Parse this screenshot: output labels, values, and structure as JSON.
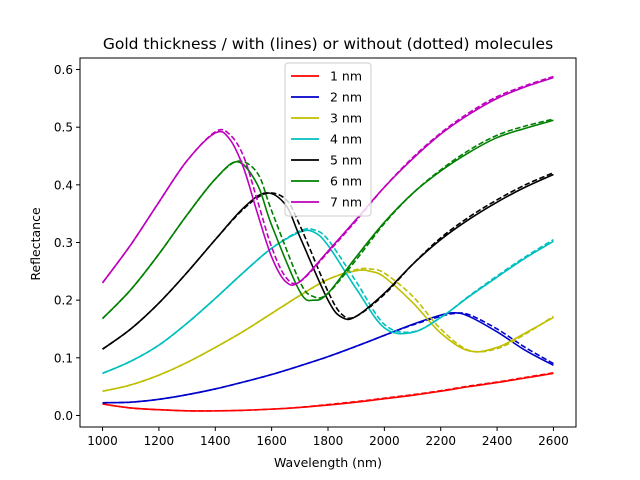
{
  "chart_data": {
    "type": "line",
    "title": "Gold thickness / with (lines) or without (dotted) molecules",
    "xlabel": "Wavelength (nm)",
    "ylabel": "Reflectance",
    "xlim": [
      920,
      2680
    ],
    "ylim": [
      -0.02,
      0.62
    ],
    "xticks": [
      1000,
      1200,
      1400,
      1600,
      1800,
      2000,
      2200,
      2400,
      2600
    ],
    "yticks": [
      0.0,
      0.1,
      0.2,
      0.3,
      0.4,
      0.5,
      0.6
    ],
    "grid": false,
    "legend_position": "top-center",
    "series": [
      {
        "name": "1 nm",
        "color": "#ff0000",
        "solid": [
          [
            1000,
            0.02
          ],
          [
            1100,
            0.013
          ],
          [
            1200,
            0.01
          ],
          [
            1300,
            0.008
          ],
          [
            1400,
            0.008
          ],
          [
            1500,
            0.009
          ],
          [
            1600,
            0.011
          ],
          [
            1700,
            0.014
          ],
          [
            1800,
            0.018
          ],
          [
            1900,
            0.023
          ],
          [
            2000,
            0.029
          ],
          [
            2100,
            0.035
          ],
          [
            2200,
            0.042
          ],
          [
            2300,
            0.05
          ],
          [
            2400,
            0.057
          ],
          [
            2500,
            0.065
          ],
          [
            2600,
            0.073
          ]
        ],
        "dotted": [
          [
            1000,
            0.02
          ],
          [
            1100,
            0.013
          ],
          [
            1200,
            0.01
          ],
          [
            1300,
            0.008
          ],
          [
            1400,
            0.008
          ],
          [
            1500,
            0.009
          ],
          [
            1600,
            0.011
          ],
          [
            1700,
            0.014
          ],
          [
            1800,
            0.019
          ],
          [
            1900,
            0.024
          ],
          [
            2000,
            0.03
          ],
          [
            2100,
            0.036
          ],
          [
            2200,
            0.043
          ],
          [
            2300,
            0.051
          ],
          [
            2400,
            0.058
          ],
          [
            2500,
            0.066
          ],
          [
            2600,
            0.074
          ]
        ]
      },
      {
        "name": "2 nm",
        "color": "#0000cc",
        "solid": [
          [
            1000,
            0.022
          ],
          [
            1100,
            0.023
          ],
          [
            1200,
            0.028
          ],
          [
            1300,
            0.036
          ],
          [
            1400,
            0.046
          ],
          [
            1500,
            0.058
          ],
          [
            1600,
            0.071
          ],
          [
            1700,
            0.086
          ],
          [
            1800,
            0.102
          ],
          [
            1900,
            0.12
          ],
          [
            2000,
            0.139
          ],
          [
            2100,
            0.158
          ],
          [
            2200,
            0.174
          ],
          [
            2250,
            0.178
          ],
          [
            2300,
            0.172
          ],
          [
            2400,
            0.145
          ],
          [
            2500,
            0.113
          ],
          [
            2600,
            0.087
          ]
        ],
        "dotted": [
          [
            1000,
            0.022
          ],
          [
            1100,
            0.023
          ],
          [
            1200,
            0.028
          ],
          [
            1300,
            0.036
          ],
          [
            1400,
            0.046
          ],
          [
            1500,
            0.058
          ],
          [
            1600,
            0.071
          ],
          [
            1700,
            0.086
          ],
          [
            1800,
            0.102
          ],
          [
            1900,
            0.12
          ],
          [
            2000,
            0.139
          ],
          [
            2100,
            0.157
          ],
          [
            2200,
            0.172
          ],
          [
            2250,
            0.177
          ],
          [
            2300,
            0.175
          ],
          [
            2400,
            0.15
          ],
          [
            2500,
            0.118
          ],
          [
            2600,
            0.09
          ]
        ]
      },
      {
        "name": "3 nm",
        "color": "#bfbf00",
        "solid": [
          [
            1000,
            0.042
          ],
          [
            1100,
            0.053
          ],
          [
            1200,
            0.07
          ],
          [
            1300,
            0.092
          ],
          [
            1400,
            0.118
          ],
          [
            1500,
            0.146
          ],
          [
            1600,
            0.177
          ],
          [
            1700,
            0.208
          ],
          [
            1800,
            0.236
          ],
          [
            1900,
            0.251
          ],
          [
            1950,
            0.25
          ],
          [
            2000,
            0.24
          ],
          [
            2100,
            0.196
          ],
          [
            2200,
            0.143
          ],
          [
            2300,
            0.112
          ],
          [
            2400,
            0.118
          ],
          [
            2500,
            0.143
          ],
          [
            2600,
            0.17
          ]
        ],
        "dotted": [
          [
            1000,
            0.042
          ],
          [
            1100,
            0.053
          ],
          [
            1200,
            0.07
          ],
          [
            1300,
            0.092
          ],
          [
            1400,
            0.118
          ],
          [
            1500,
            0.146
          ],
          [
            1600,
            0.177
          ],
          [
            1700,
            0.208
          ],
          [
            1800,
            0.236
          ],
          [
            1900,
            0.253
          ],
          [
            1950,
            0.254
          ],
          [
            2000,
            0.247
          ],
          [
            2100,
            0.207
          ],
          [
            2200,
            0.15
          ],
          [
            2300,
            0.113
          ],
          [
            2400,
            0.116
          ],
          [
            2500,
            0.141
          ],
          [
            2600,
            0.172
          ]
        ]
      },
      {
        "name": "4 nm",
        "color": "#00bfbf",
        "solid": [
          [
            1000,
            0.073
          ],
          [
            1100,
            0.094
          ],
          [
            1200,
            0.122
          ],
          [
            1300,
            0.16
          ],
          [
            1400,
            0.203
          ],
          [
            1500,
            0.248
          ],
          [
            1600,
            0.29
          ],
          [
            1700,
            0.318
          ],
          [
            1750,
            0.318
          ],
          [
            1800,
            0.295
          ],
          [
            1900,
            0.22
          ],
          [
            2000,
            0.152
          ],
          [
            2100,
            0.144
          ],
          [
            2200,
            0.17
          ],
          [
            2300,
            0.206
          ],
          [
            2400,
            0.24
          ],
          [
            2500,
            0.273
          ],
          [
            2600,
            0.302
          ]
        ],
        "dotted": [
          [
            1000,
            0.073
          ],
          [
            1100,
            0.094
          ],
          [
            1200,
            0.122
          ],
          [
            1300,
            0.16
          ],
          [
            1400,
            0.203
          ],
          [
            1500,
            0.248
          ],
          [
            1600,
            0.29
          ],
          [
            1700,
            0.32
          ],
          [
            1750,
            0.322
          ],
          [
            1800,
            0.305
          ],
          [
            1900,
            0.232
          ],
          [
            2000,
            0.158
          ],
          [
            2100,
            0.145
          ],
          [
            2200,
            0.17
          ],
          [
            2300,
            0.207
          ],
          [
            2400,
            0.242
          ],
          [
            2500,
            0.275
          ],
          [
            2600,
            0.305
          ]
        ]
      },
      {
        "name": "5 nm",
        "color": "#000000",
        "solid": [
          [
            1000,
            0.115
          ],
          [
            1100,
            0.15
          ],
          [
            1200,
            0.195
          ],
          [
            1300,
            0.248
          ],
          [
            1400,
            0.305
          ],
          [
            1500,
            0.36
          ],
          [
            1580,
            0.386
          ],
          [
            1650,
            0.365
          ],
          [
            1700,
            0.31
          ],
          [
            1800,
            0.2
          ],
          [
            1850,
            0.17
          ],
          [
            1900,
            0.172
          ],
          [
            2000,
            0.212
          ],
          [
            2100,
            0.262
          ],
          [
            2200,
            0.305
          ],
          [
            2300,
            0.34
          ],
          [
            2400,
            0.37
          ],
          [
            2500,
            0.396
          ],
          [
            2600,
            0.418
          ]
        ],
        "dotted": [
          [
            1000,
            0.115
          ],
          [
            1100,
            0.15
          ],
          [
            1200,
            0.195
          ],
          [
            1300,
            0.248
          ],
          [
            1400,
            0.305
          ],
          [
            1500,
            0.358
          ],
          [
            1580,
            0.385
          ],
          [
            1650,
            0.375
          ],
          [
            1700,
            0.33
          ],
          [
            1800,
            0.215
          ],
          [
            1850,
            0.175
          ],
          [
            1900,
            0.172
          ],
          [
            2000,
            0.21
          ],
          [
            2100,
            0.262
          ],
          [
            2200,
            0.308
          ],
          [
            2300,
            0.344
          ],
          [
            2400,
            0.374
          ],
          [
            2500,
            0.4
          ],
          [
            2600,
            0.421
          ]
        ]
      },
      {
        "name": "6 nm",
        "color": "#008000",
        "solid": [
          [
            1000,
            0.168
          ],
          [
            1100,
            0.218
          ],
          [
            1200,
            0.28
          ],
          [
            1300,
            0.348
          ],
          [
            1400,
            0.41
          ],
          [
            1480,
            0.44
          ],
          [
            1550,
            0.4
          ],
          [
            1600,
            0.33
          ],
          [
            1700,
            0.215
          ],
          [
            1750,
            0.2
          ],
          [
            1800,
            0.212
          ],
          [
            1900,
            0.275
          ],
          [
            2000,
            0.335
          ],
          [
            2100,
            0.385
          ],
          [
            2200,
            0.424
          ],
          [
            2300,
            0.456
          ],
          [
            2400,
            0.482
          ],
          [
            2500,
            0.498
          ],
          [
            2600,
            0.512
          ]
        ],
        "dotted": [
          [
            1000,
            0.168
          ],
          [
            1100,
            0.218
          ],
          [
            1200,
            0.28
          ],
          [
            1300,
            0.348
          ],
          [
            1400,
            0.41
          ],
          [
            1480,
            0.441
          ],
          [
            1550,
            0.42
          ],
          [
            1600,
            0.355
          ],
          [
            1700,
            0.232
          ],
          [
            1750,
            0.206
          ],
          [
            1800,
            0.212
          ],
          [
            1900,
            0.27
          ],
          [
            2000,
            0.333
          ],
          [
            2100,
            0.385
          ],
          [
            2200,
            0.426
          ],
          [
            2300,
            0.46
          ],
          [
            2400,
            0.486
          ],
          [
            2500,
            0.502
          ],
          [
            2600,
            0.514
          ]
        ]
      },
      {
        "name": "7 nm",
        "color": "#bf00bf",
        "solid": [
          [
            1000,
            0.23
          ],
          [
            1100,
            0.296
          ],
          [
            1200,
            0.37
          ],
          [
            1300,
            0.442
          ],
          [
            1400,
            0.49
          ],
          [
            1450,
            0.48
          ],
          [
            1500,
            0.43
          ],
          [
            1550,
            0.35
          ],
          [
            1600,
            0.275
          ],
          [
            1650,
            0.232
          ],
          [
            1700,
            0.232
          ],
          [
            1800,
            0.285
          ],
          [
            1900,
            0.34
          ],
          [
            2000,
            0.396
          ],
          [
            2100,
            0.445
          ],
          [
            2200,
            0.488
          ],
          [
            2300,
            0.522
          ],
          [
            2400,
            0.55
          ],
          [
            2500,
            0.57
          ],
          [
            2600,
            0.586
          ]
        ],
        "dotted": [
          [
            1000,
            0.23
          ],
          [
            1100,
            0.296
          ],
          [
            1200,
            0.37
          ],
          [
            1300,
            0.442
          ],
          [
            1400,
            0.492
          ],
          [
            1450,
            0.488
          ],
          [
            1500,
            0.45
          ],
          [
            1550,
            0.372
          ],
          [
            1600,
            0.292
          ],
          [
            1650,
            0.24
          ],
          [
            1700,
            0.232
          ],
          [
            1800,
            0.283
          ],
          [
            1900,
            0.338
          ],
          [
            2000,
            0.396
          ],
          [
            2100,
            0.447
          ],
          [
            2200,
            0.49
          ],
          [
            2300,
            0.525
          ],
          [
            2400,
            0.553
          ],
          [
            2500,
            0.572
          ],
          [
            2600,
            0.588
          ]
        ]
      }
    ]
  }
}
